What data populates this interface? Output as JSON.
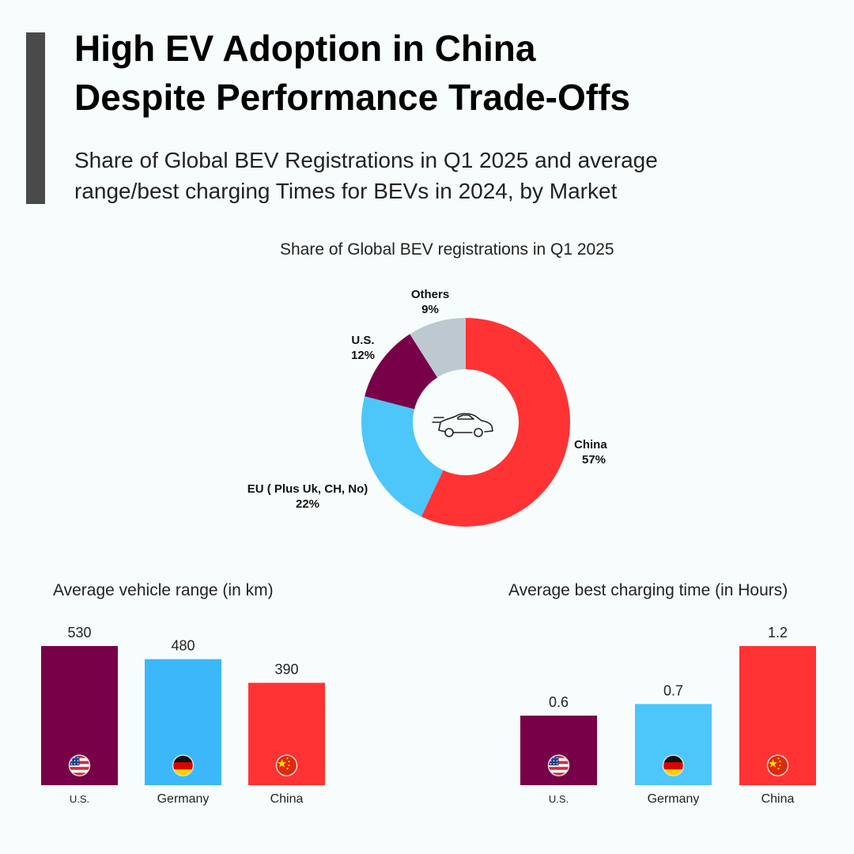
{
  "header": {
    "title_line1": "High EV Adoption in China",
    "title_line2": "Despite Performance Trade-Offs",
    "subtitle_line1": "Share of Global BEV Registrations in Q1 2025 and average",
    "subtitle_line2": "range/best charging Times  for BEVs in 2024, by Market"
  },
  "icons": {
    "center": "car-icon",
    "us": "us-flag-icon",
    "germany": "germany-flag-icon",
    "china": "china-flag-icon"
  },
  "chart_data": [
    {
      "type": "pie",
      "title": "Share of Global BEV registrations in Q1 2025",
      "categories": [
        "China",
        "EU ( Plus Uk, CH, No)",
        "U.S.",
        "Others"
      ],
      "values": [
        57,
        22,
        12,
        9
      ],
      "value_labels": [
        "57%",
        "22%",
        "12%",
        "9%"
      ],
      "colors": [
        "#ff3333",
        "#4dc6fa",
        "#780048",
        "#bec8d0"
      ]
    },
    {
      "type": "bar",
      "title": "Average vehicle range (in km)",
      "categories": [
        "U.S.",
        "Germany",
        "China"
      ],
      "values": [
        530,
        480,
        390
      ],
      "value_labels": [
        "530",
        "480",
        "390"
      ],
      "colors": [
        "#780048",
        "#3cb7fa",
        "#ff3333"
      ],
      "ylim": [
        0,
        530
      ]
    },
    {
      "type": "bar",
      "title": "Average best charging time (in Hours)",
      "categories": [
        "U.S.",
        "Germany",
        "China"
      ],
      "values": [
        0.6,
        0.7,
        1.2
      ],
      "value_labels": [
        "0.6",
        "0.7",
        "1.2"
      ],
      "colors": [
        "#780048",
        "#4dc6fa",
        "#ff3333"
      ],
      "ylim": [
        0,
        1.2
      ]
    }
  ]
}
